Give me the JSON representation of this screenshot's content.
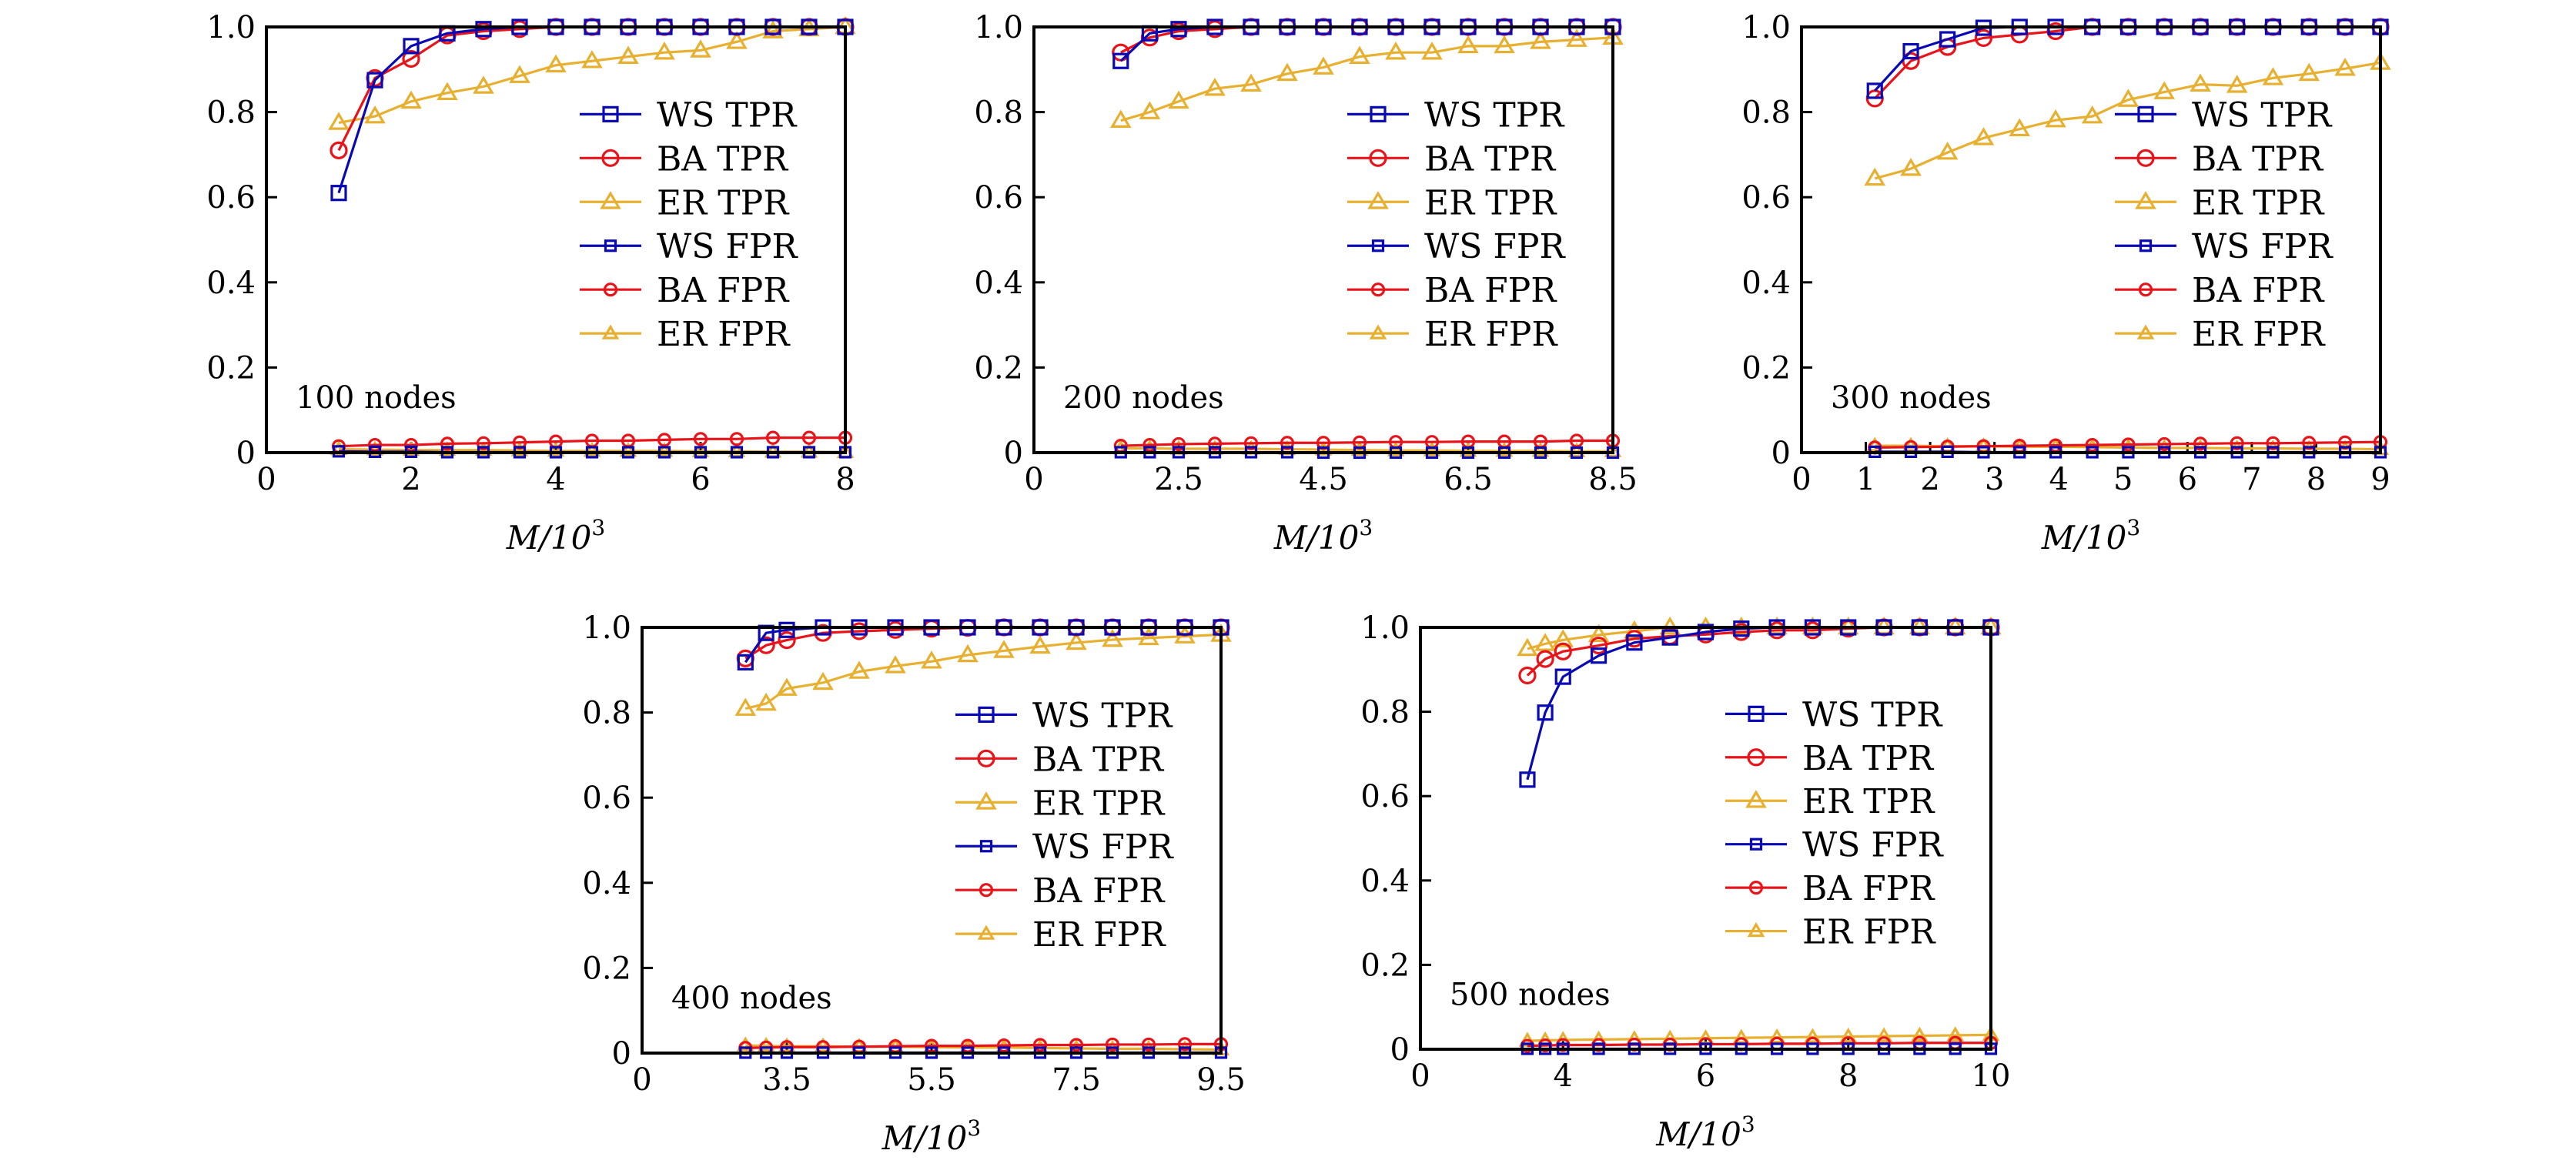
{
  "chart_data": [
    {
      "type": "line",
      "annotation": "100 nodes",
      "xlabel": "M/10^3",
      "xlabel_main": "M/10",
      "xlabel_sup": "3",
      "ylabel": "",
      "ylim": [
        0,
        1.0
      ],
      "yticks": [
        "0",
        "0.2",
        "0.4",
        "0.6",
        "0.8",
        "1.0"
      ],
      "ytick_values": [
        0,
        0.2,
        0.4,
        0.6,
        0.8,
        1.0
      ],
      "xticks": [
        "0",
        "2",
        "4",
        "6",
        "8"
      ],
      "xtick_values": [
        0,
        2,
        4,
        6,
        8
      ],
      "legend_position": "right",
      "grid": false,
      "x": [
        1,
        1.5,
        2,
        2.5,
        3,
        3.5,
        4,
        4.5,
        5,
        5.5,
        6,
        6.5,
        7,
        7.5,
        8
      ],
      "series": [
        {
          "name": "WS TPR",
          "values": [
            0.61,
            0.875,
            0.955,
            0.985,
            0.995,
            1.0,
            1.0,
            1.0,
            1.0,
            1.0,
            1.0,
            1.0,
            1.0,
            1.0,
            1.0
          ]
        },
        {
          "name": "BA TPR",
          "values": [
            0.71,
            0.88,
            0.925,
            0.98,
            0.99,
            0.995,
            1.0,
            1.0,
            1.0,
            1.0,
            1.0,
            1.0,
            1.0,
            1.0,
            1.0
          ]
        },
        {
          "name": "ER TPR",
          "values": [
            0.775,
            0.79,
            0.825,
            0.845,
            0.86,
            0.885,
            0.91,
            0.92,
            0.93,
            0.94,
            0.945,
            0.965,
            0.99,
            0.995,
            1.0
          ]
        },
        {
          "name": "WS FPR",
          "values": [
            0.003,
            0.002,
            0.002,
            0.001,
            0.001,
            0.001,
            0.001,
            0.001,
            0.001,
            0.001,
            0.001,
            0.001,
            0.001,
            0.001,
            0.001
          ]
        },
        {
          "name": "BA FPR",
          "values": [
            0.015,
            0.018,
            0.018,
            0.021,
            0.022,
            0.024,
            0.026,
            0.028,
            0.028,
            0.03,
            0.032,
            0.032,
            0.035,
            0.035,
            0.035
          ]
        },
        {
          "name": "ER FPR",
          "values": [
            0.008,
            0.007,
            0.006,
            0.006,
            0.006,
            0.005,
            0.004,
            0.004,
            0.004,
            0.004,
            0.003,
            0.003,
            0.002,
            0.002,
            0.001
          ]
        }
      ]
    },
    {
      "type": "line",
      "annotation": "200 nodes",
      "xlabel": "M/10^3",
      "xlabel_main": "M/10",
      "xlabel_sup": "3",
      "ylabel": "",
      "ylim": [
        0,
        1.0
      ],
      "yticks": [
        "0",
        "0.2",
        "0.4",
        "0.6",
        "0.8",
        "1.0"
      ],
      "ytick_values": [
        0,
        0.2,
        0.4,
        0.6,
        0.8,
        1.0
      ],
      "xticks": [
        "0",
        "2.5",
        "4.5",
        "6.5",
        "8.5"
      ],
      "xtick_values": [
        0,
        2.5,
        4.5,
        6.5,
        8.5
      ],
      "legend_position": "right",
      "grid": false,
      "x": [
        1.5,
        2,
        2.5,
        3,
        3.5,
        4,
        4.5,
        5,
        5.5,
        6,
        6.5,
        7,
        7.5,
        8,
        8.5
      ],
      "series": [
        {
          "name": "WS TPR",
          "values": [
            0.92,
            0.985,
            0.995,
            1.0,
            1.0,
            1.0,
            1.0,
            1.0,
            1.0,
            1.0,
            1.0,
            1.0,
            1.0,
            1.0,
            1.0
          ]
        },
        {
          "name": "BA TPR",
          "values": [
            0.94,
            0.975,
            0.99,
            0.995,
            1.0,
            1.0,
            1.0,
            1.0,
            1.0,
            1.0,
            1.0,
            1.0,
            1.0,
            1.0,
            1.0
          ]
        },
        {
          "name": "ER TPR",
          "values": [
            0.78,
            0.8,
            0.825,
            0.855,
            0.865,
            0.89,
            0.905,
            0.93,
            0.94,
            0.94,
            0.955,
            0.955,
            0.965,
            0.97,
            0.975
          ]
        },
        {
          "name": "WS FPR",
          "values": [
            0.001,
            0.001,
            0.001,
            0.001,
            0.001,
            0.001,
            0.0,
            0.0,
            0.0,
            0.0,
            0.0,
            0.0,
            0.0,
            0.0,
            0.0
          ]
        },
        {
          "name": "BA FPR",
          "values": [
            0.016,
            0.018,
            0.02,
            0.021,
            0.022,
            0.023,
            0.023,
            0.024,
            0.025,
            0.025,
            0.026,
            0.026,
            0.026,
            0.028,
            0.028
          ]
        },
        {
          "name": "ER FPR",
          "values": [
            0.01,
            0.01,
            0.009,
            0.009,
            0.009,
            0.008,
            0.007,
            0.006,
            0.005,
            0.005,
            0.004,
            0.004,
            0.004,
            0.003,
            0.003
          ]
        }
      ]
    },
    {
      "type": "line",
      "annotation": "300 nodes",
      "xlabel": "M/10^3",
      "xlabel_main": "M/10",
      "xlabel_sup": "3",
      "ylabel": "",
      "ylim": [
        0,
        1.0
      ],
      "yticks": [
        "0",
        "0.2",
        "0.4",
        "0.6",
        "0.8",
        "1.0"
      ],
      "ytick_values": [
        0,
        0.2,
        0.4,
        0.6,
        0.8,
        1.0
      ],
      "xticks": [
        "0",
        "1",
        "2",
        "3",
        "4",
        "5",
        "6",
        "7",
        "8",
        "9"
      ],
      "xtick_values": [
        0,
        1,
        2,
        3,
        4,
        5,
        6,
        7,
        8,
        9
      ],
      "legend_position": "right",
      "grid": false,
      "x": [
        1.14,
        1.7,
        2.27,
        2.83,
        3.39,
        3.95,
        4.52,
        5.08,
        5.64,
        6.2,
        6.77,
        7.33,
        7.89,
        8.45,
        9.0
      ],
      "series": [
        {
          "name": "WS TPR",
          "values": [
            0.85,
            0.943,
            0.971,
            0.998,
            1.0,
            1.0,
            1.0,
            1.0,
            1.0,
            1.0,
            1.0,
            1.0,
            1.0,
            1.0,
            1.0
          ]
        },
        {
          "name": "BA TPR",
          "values": [
            0.832,
            0.92,
            0.953,
            0.974,
            0.982,
            0.99,
            1.0,
            1.0,
            1.0,
            1.0,
            1.0,
            1.0,
            1.0,
            1.0,
            1.0
          ]
        },
        {
          "name": "ER TPR",
          "values": [
            0.644,
            0.667,
            0.705,
            0.739,
            0.76,
            0.781,
            0.79,
            0.829,
            0.847,
            0.865,
            0.862,
            0.88,
            0.89,
            0.902,
            0.916
          ]
        },
        {
          "name": "WS FPR",
          "values": [
            0.002,
            0.002,
            0.002,
            0.001,
            0.001,
            0.001,
            0.001,
            0.001,
            0.001,
            0.001,
            0.001,
            0.001,
            0.001,
            0.001,
            0.001
          ]
        },
        {
          "name": "BA FPR",
          "values": [
            0.012,
            0.013,
            0.014,
            0.015,
            0.016,
            0.017,
            0.018,
            0.019,
            0.02,
            0.021,
            0.022,
            0.022,
            0.023,
            0.024,
            0.025
          ]
        },
        {
          "name": "ER FPR",
          "values": [
            0.016,
            0.016,
            0.015,
            0.015,
            0.014,
            0.014,
            0.013,
            0.012,
            0.011,
            0.011,
            0.01,
            0.01,
            0.009,
            0.009,
            0.008
          ]
        }
      ]
    },
    {
      "type": "line",
      "annotation": "400 nodes",
      "xlabel": "M/10^3",
      "xlabel_main": "M/10",
      "xlabel_sup": "3",
      "ylabel": "",
      "ylim": [
        0,
        1.0
      ],
      "yticks": [
        "0",
        "0.2",
        "0.4",
        "0.6",
        "0.8",
        "1.0"
      ],
      "ytick_values": [
        0,
        0.2,
        0.4,
        0.6,
        0.8,
        1.0
      ],
      "xticks": [
        "0",
        "3.5",
        "5.5",
        "7.5",
        "9.5"
      ],
      "xtick_values": [
        0,
        3.5,
        5.5,
        7.5,
        9.5
      ],
      "legend_position": "right",
      "grid": false,
      "x": [
        2.5,
        3,
        3.5,
        4,
        4.5,
        5,
        5.5,
        6,
        6.5,
        7,
        7.5,
        8,
        8.5,
        9,
        9.5
      ],
      "series": [
        {
          "name": "WS TPR",
          "values": [
            0.918,
            0.987,
            0.994,
            1.0,
            1.0,
            1.0,
            1.0,
            1.0,
            1.0,
            1.0,
            1.0,
            1.0,
            1.0,
            1.0,
            1.0
          ]
        },
        {
          "name": "BA TPR",
          "values": [
            0.927,
            0.958,
            0.97,
            0.987,
            0.991,
            0.994,
            0.997,
            0.999,
            1.0,
            1.0,
            1.0,
            1.0,
            1.0,
            1.0,
            1.0
          ]
        },
        {
          "name": "ER TPR",
          "values": [
            0.809,
            0.821,
            0.856,
            0.87,
            0.896,
            0.909,
            0.92,
            0.935,
            0.945,
            0.955,
            0.964,
            0.971,
            0.975,
            0.979,
            0.983
          ]
        },
        {
          "name": "WS FPR",
          "values": [
            0.001,
            0.001,
            0.001,
            0.001,
            0.001,
            0.001,
            0.001,
            0.001,
            0.001,
            0.001,
            0.001,
            0.001,
            0.001,
            0.001,
            0.001
          ]
        },
        {
          "name": "BA FPR",
          "values": [
            0.012,
            0.013,
            0.014,
            0.014,
            0.015,
            0.016,
            0.017,
            0.017,
            0.018,
            0.019,
            0.019,
            0.02,
            0.02,
            0.021,
            0.021
          ]
        },
        {
          "name": "ER FPR",
          "values": [
            0.018,
            0.017,
            0.016,
            0.016,
            0.015,
            0.015,
            0.014,
            0.013,
            0.013,
            0.012,
            0.011,
            0.01,
            0.01,
            0.009,
            0.008
          ]
        }
      ]
    },
    {
      "type": "line",
      "annotation": "500 nodes",
      "xlabel": "M/10^3",
      "xlabel_main": "M/10",
      "xlabel_sup": "3",
      "ylabel": "",
      "ylim": [
        0,
        1.0
      ],
      "yticks": [
        "0",
        "0.2",
        "0.4",
        "0.6",
        "0.8",
        "1.0"
      ],
      "ytick_values": [
        0,
        0.2,
        0.4,
        0.6,
        0.8,
        1.0
      ],
      "xticks": [
        "0",
        "4",
        "6",
        "8",
        "10"
      ],
      "xtick_values": [
        0,
        4,
        6,
        8,
        10
      ],
      "legend_position": "right",
      "grid": false,
      "x": [
        3,
        3.5,
        4,
        4.5,
        5,
        5.5,
        6,
        6.5,
        7,
        7.5,
        8,
        8.5,
        9,
        9.5,
        10
      ],
      "series": [
        {
          "name": "WS TPR",
          "values": [
            0.639,
            0.798,
            0.883,
            0.933,
            0.964,
            0.976,
            0.989,
            0.997,
            1.0,
            1.0,
            1.0,
            1.0,
            1.0,
            1.0,
            1.0
          ]
        },
        {
          "name": "BA TPR",
          "values": [
            0.886,
            0.925,
            0.943,
            0.957,
            0.973,
            0.979,
            0.983,
            0.989,
            0.993,
            0.993,
            0.997,
            1.0,
            1.0,
            1.0,
            1.0
          ]
        },
        {
          "name": "ER TPR",
          "values": [
            0.949,
            0.961,
            0.97,
            0.982,
            0.991,
            1.0,
            1.0,
            1.0,
            1.0,
            1.0,
            1.0,
            1.0,
            1.0,
            1.0,
            1.0
          ]
        },
        {
          "name": "WS FPR",
          "values": [
            0.001,
            0.001,
            0.001,
            0.001,
            0.001,
            0.001,
            0.001,
            0.001,
            0.001,
            0.001,
            0.001,
            0.001,
            0.001,
            0.001,
            0.001
          ]
        },
        {
          "name": "BA FPR",
          "values": [
            0.008,
            0.009,
            0.01,
            0.01,
            0.011,
            0.011,
            0.012,
            0.012,
            0.013,
            0.013,
            0.014,
            0.014,
            0.015,
            0.015,
            0.015
          ]
        },
        {
          "name": "ER FPR",
          "values": [
            0.02,
            0.021,
            0.022,
            0.023,
            0.024,
            0.025,
            0.026,
            0.027,
            0.028,
            0.029,
            0.03,
            0.031,
            0.032,
            0.033,
            0.034
          ]
        }
      ]
    }
  ],
  "legend": [
    {
      "label": "WS TPR",
      "color": "#0a0ab4",
      "marker": "square",
      "marker_size": "large"
    },
    {
      "label": "BA TPR",
      "color": "#e8141a",
      "marker": "circle",
      "marker_size": "large"
    },
    {
      "label": "ER TPR",
      "color": "#e8b030",
      "marker": "triangle",
      "marker_size": "large"
    },
    {
      "label": "WS FPR",
      "color": "#0a0ab4",
      "marker": "square",
      "marker_size": "small"
    },
    {
      "label": "BA FPR",
      "color": "#e8141a",
      "marker": "circle",
      "marker_size": "small"
    },
    {
      "label": "ER FPR",
      "color": "#e8b030",
      "marker": "triangle",
      "marker_size": "small"
    }
  ]
}
